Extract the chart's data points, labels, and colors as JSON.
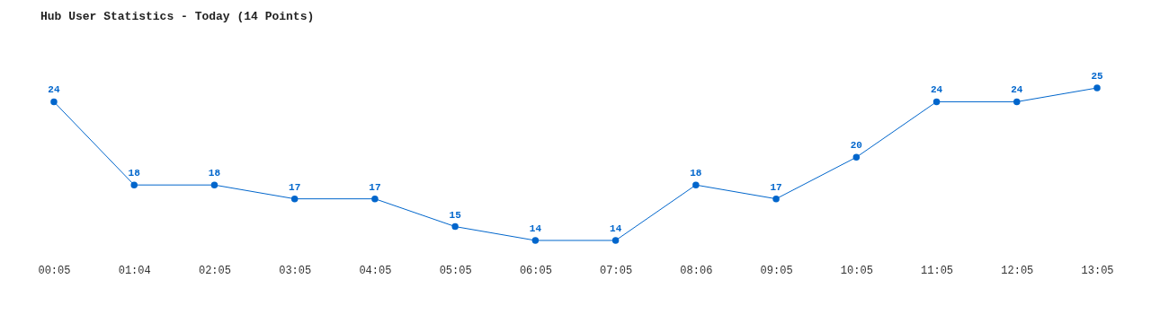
{
  "chart_data": {
    "type": "line",
    "title": "Hub User Statistics - Today (14 Points)",
    "categories": [
      "00:05",
      "01:04",
      "02:05",
      "03:05",
      "04:05",
      "05:05",
      "06:05",
      "07:05",
      "08:06",
      "09:05",
      "10:05",
      "11:05",
      "12:05",
      "13:05"
    ],
    "series": [
      {
        "color": "#0066cc",
        "values": [
          24,
          18,
          18,
          17,
          17,
          15,
          14,
          14,
          18,
          17,
          20,
          24,
          24,
          25
        ]
      }
    ],
    "data_labels": true,
    "tick_labels": "x",
    "marker": "circle",
    "line_style": "solid"
  }
}
